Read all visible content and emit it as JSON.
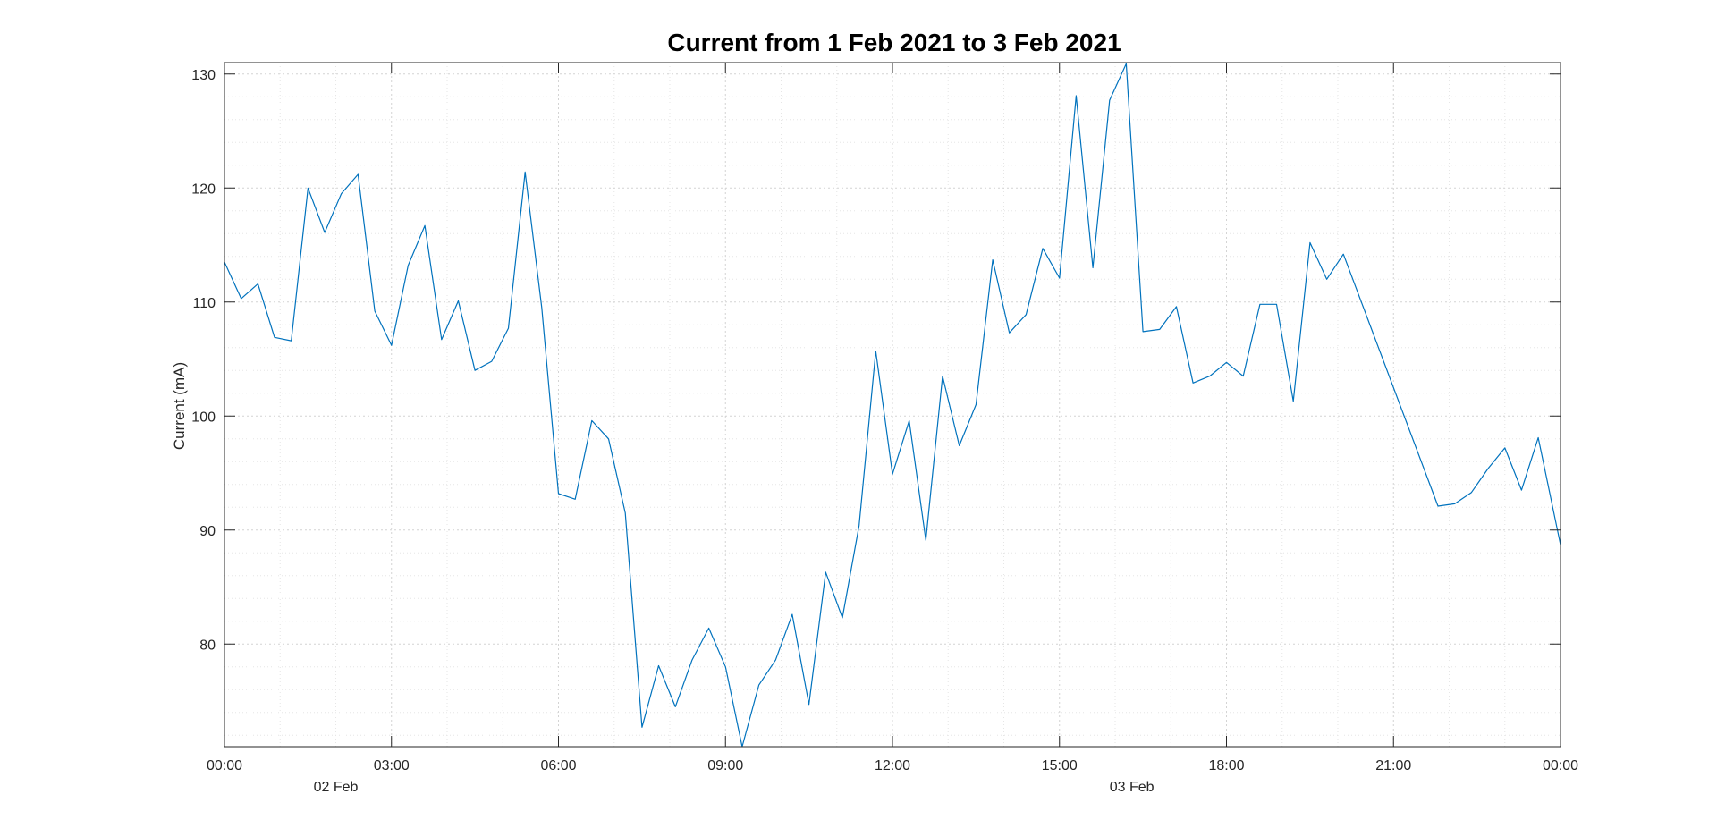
{
  "chart_data": {
    "type": "line",
    "title": "Current from 1 Feb 2021 to 3 Feb 2021",
    "xlabel": "",
    "ylabel": "Current (mA)",
    "ylim": [
      71,
      131
    ],
    "y_ticks": [
      80,
      90,
      100,
      110,
      120,
      130
    ],
    "x_ticks": [
      "00:00",
      "03:00",
      "06:00",
      "09:00",
      "12:00",
      "15:00",
      "18:00",
      "21:00",
      "00:00"
    ],
    "x_ticks_hours": [
      0,
      3,
      6,
      9,
      12,
      15,
      18,
      21,
      24
    ],
    "date_labels": [
      {
        "label": "02 Feb",
        "hour": 2
      },
      {
        "label": "03 Feb",
        "hour": 16.3
      }
    ],
    "grid": "on",
    "minor_grid": "on",
    "line_color": "#0072BD",
    "series": [
      {
        "x_hours": [
          0,
          0.3,
          0.6,
          0.9,
          1.2,
          1.5,
          1.8,
          2.1,
          2.4,
          2.7,
          3.0,
          3.3,
          3.6,
          3.9,
          4.2,
          4.5,
          4.8,
          5.1,
          5.4,
          5.7,
          6.0,
          6.3,
          6.6,
          6.9,
          7.2,
          7.5,
          7.8,
          8.1,
          8.4,
          8.7,
          9.0,
          9.3,
          9.6,
          9.9,
          10.2,
          10.5,
          10.8,
          11.1,
          11.4,
          11.7,
          12.0,
          12.3,
          12.6,
          12.9,
          13.2,
          13.5,
          13.8,
          14.1,
          14.4,
          14.7,
          15.0,
          15.3,
          15.6,
          15.9,
          16.2,
          16.5,
          16.8,
          17.1,
          17.4,
          17.7,
          18.0,
          18.3,
          18.6,
          18.9,
          19.2,
          19.5,
          19.8,
          20.1,
          21.8,
          22.1,
          22.4,
          22.7,
          23.0,
          23.3,
          23.6,
          24.0
        ],
        "values": [
          113.5,
          110.3,
          111.6,
          106.9,
          106.6,
          120.0,
          116.1,
          119.5,
          121.2,
          109.2,
          106.2,
          113.2,
          116.7,
          106.7,
          110.1,
          104.0,
          104.8,
          107.7,
          121.4,
          109.5,
          93.2,
          92.7,
          99.6,
          98.0,
          91.5,
          72.7,
          78.1,
          74.5,
          78.6,
          81.4,
          78.0,
          71.0,
          76.4,
          78.6,
          82.6,
          74.7,
          86.3,
          82.3,
          90.4,
          105.7,
          94.9,
          99.6,
          89.1,
          103.5,
          97.4,
          101.0,
          113.7,
          107.3,
          108.9,
          114.7,
          112.1,
          128.1,
          113.0,
          127.7,
          130.9,
          107.4,
          107.6,
          109.6,
          102.9,
          103.5,
          104.7,
          103.5,
          109.8,
          109.8,
          101.3,
          115.2,
          112.0,
          114.2,
          92.1,
          92.3,
          93.3,
          95.4,
          97.2,
          93.5,
          98.1,
          88.7
        ]
      }
    ]
  }
}
